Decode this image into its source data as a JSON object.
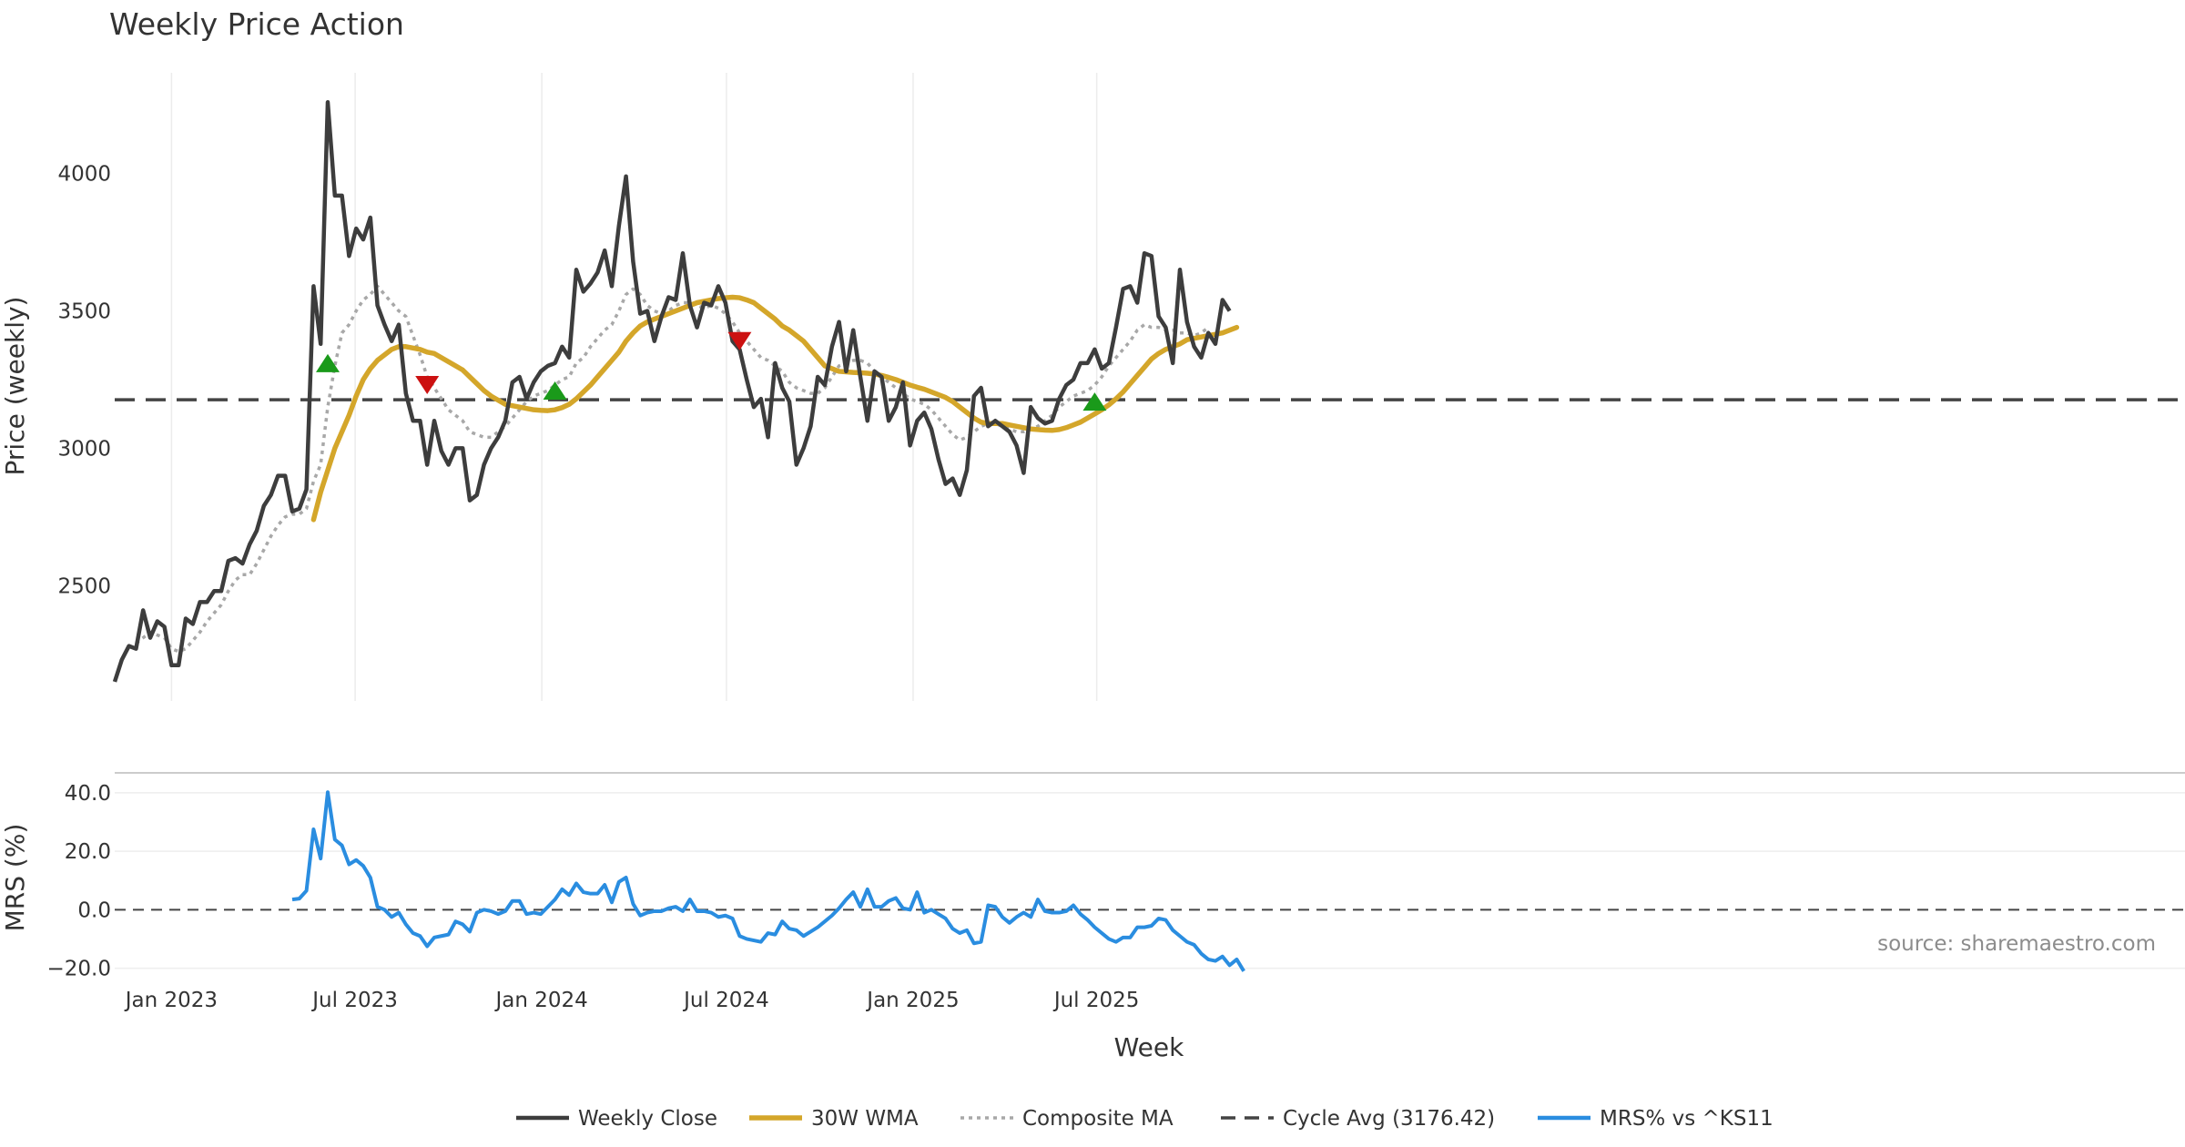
{
  "chart_data": {
    "type": "line",
    "title": "Weekly Price Action",
    "xlabel": "Week",
    "x_ticks": [
      "Jan 2023",
      "Jul 2023",
      "Jan 2024",
      "Jul 2024",
      "Jan 2025",
      "Jul 2025"
    ],
    "x_range": [
      "2022-11-06",
      "2025-11-15"
    ],
    "source_note": "source: sharemaestro.com",
    "colors": {
      "weekly_close": "#3d3d3d",
      "wma": "#d4a62a",
      "composite": "#a8a8a8",
      "cycle": "#444444",
      "mrs": "#2a8de0",
      "buy_marker": "#1a9a1a",
      "sell_marker": "#cc1111"
    },
    "price_panel": {
      "ylabel": "Price (weekly)",
      "ylim": [
        2080,
        4400
      ],
      "yticks": [
        2500,
        3000,
        3500,
        4000
      ],
      "grid": "vertical",
      "series": [
        {
          "name": "Weekly Close",
          "style": "solid",
          "values": [
            2150,
            2230,
            2280,
            2270,
            2410,
            2310,
            2370,
            2350,
            2210,
            2210,
            2380,
            2360,
            2440,
            2440,
            2480,
            2480,
            2590,
            2600,
            2580,
            2650,
            2700,
            2790,
            2830,
            2900,
            2900,
            2770,
            2780,
            2850,
            3590,
            3380,
            4260,
            3920,
            3920,
            3700,
            3800,
            3760,
            3840,
            3520,
            3450,
            3390,
            3450,
            3200,
            3100,
            3100,
            2940,
            3100,
            2990,
            2940,
            3000,
            3000,
            2810,
            2830,
            2940,
            3000,
            3040,
            3100,
            3240,
            3260,
            3180,
            3240,
            3280,
            3300,
            3310,
            3370,
            3330,
            3650,
            3570,
            3600,
            3640,
            3720,
            3590,
            3810,
            3990,
            3680,
            3490,
            3500,
            3390,
            3480,
            3550,
            3540,
            3710,
            3520,
            3440,
            3530,
            3520,
            3590,
            3530,
            3390,
            3360,
            3250,
            3150,
            3180,
            3040,
            3310,
            3220,
            3170,
            2940,
            3000,
            3080,
            3260,
            3230,
            3370,
            3460,
            3280,
            3430,
            3260,
            3100,
            3280,
            3260,
            3100,
            3150,
            3240,
            3010,
            3100,
            3130,
            3070,
            2960,
            2870,
            2890,
            2830,
            2920,
            3190,
            3220,
            3080,
            3100,
            3080,
            3060,
            3010,
            2910,
            3150,
            3110,
            3090,
            3100,
            3180,
            3230,
            3250,
            3310,
            3310,
            3360,
            3290,
            3310,
            3440,
            3580,
            3590,
            3530,
            3710,
            3700,
            3480,
            3440,
            3310,
            3650,
            3460,
            3370,
            3330,
            3420,
            3380,
            3540,
            3500
          ]
        },
        {
          "name": "30W WMA",
          "style": "solid",
          "start_index": 28,
          "values": [
            2740,
            2840,
            2920,
            3000,
            3060,
            3120,
            3190,
            3250,
            3290,
            3320,
            3340,
            3360,
            3370,
            3370,
            3365,
            3360,
            3350,
            3345,
            3330,
            3315,
            3300,
            3285,
            3260,
            3235,
            3210,
            3190,
            3175,
            3160,
            3155,
            3150,
            3145,
            3140,
            3138,
            3137,
            3140,
            3148,
            3160,
            3180,
            3205,
            3230,
            3260,
            3290,
            3320,
            3350,
            3390,
            3420,
            3445,
            3460,
            3470,
            3480,
            3490,
            3500,
            3510,
            3520,
            3530,
            3535,
            3540,
            3545,
            3548,
            3550,
            3548,
            3540,
            3530,
            3510,
            3490,
            3470,
            3445,
            3430,
            3410,
            3390,
            3360,
            3330,
            3300,
            3290,
            3280,
            3278,
            3276,
            3275,
            3273,
            3270,
            3265,
            3258,
            3250,
            3240,
            3230,
            3222,
            3215,
            3205,
            3195,
            3185,
            3170,
            3150,
            3130,
            3110,
            3095,
            3090,
            3090,
            3090,
            3085,
            3080,
            3075,
            3070,
            3068,
            3066,
            3065,
            3068,
            3075,
            3085,
            3095,
            3110,
            3125,
            3140,
            3158,
            3180,
            3205,
            3235,
            3265,
            3295,
            3325,
            3345,
            3360,
            3370,
            3380,
            3395,
            3400,
            3405,
            3410,
            3415,
            3420,
            3430,
            3440
          ]
        },
        {
          "name": "Composite MA",
          "style": "dotted",
          "start_index": 3,
          "values": [
            2290,
            2310,
            2330,
            2320,
            2310,
            2270,
            2260,
            2270,
            2300,
            2330,
            2370,
            2400,
            2430,
            2480,
            2520,
            2540,
            2540,
            2580,
            2630,
            2680,
            2720,
            2750,
            2760,
            2760,
            2780,
            2880,
            2940,
            3150,
            3300,
            3420,
            3450,
            3500,
            3540,
            3560,
            3590,
            3560,
            3530,
            3500,
            3480,
            3410,
            3340,
            3260,
            3220,
            3180,
            3140,
            3120,
            3100,
            3060,
            3050,
            3040,
            3040,
            3060,
            3080,
            3110,
            3140,
            3170,
            3190,
            3200,
            3210,
            3230,
            3250,
            3260,
            3310,
            3330,
            3370,
            3400,
            3430,
            3450,
            3500,
            3560,
            3580,
            3560,
            3520,
            3500,
            3490,
            3500,
            3520,
            3530,
            3530,
            3520,
            3510,
            3520,
            3510,
            3490,
            3460,
            3420,
            3390,
            3360,
            3330,
            3320,
            3300,
            3280,
            3240,
            3220,
            3210,
            3200,
            3200,
            3220,
            3260,
            3300,
            3310,
            3320,
            3320,
            3310,
            3280,
            3260,
            3240,
            3220,
            3200,
            3180,
            3170,
            3160,
            3140,
            3110,
            3080,
            3050,
            3030,
            3040,
            3060,
            3080,
            3090,
            3090,
            3080,
            3070,
            3060,
            3060,
            3070,
            3080,
            3100,
            3120,
            3150,
            3170,
            3190,
            3200,
            3210,
            3230,
            3260,
            3300,
            3330,
            3360,
            3390,
            3430,
            3450,
            3440,
            3440,
            3430,
            3430,
            3420,
            3420,
            3410,
            3420,
            3440
          ]
        },
        {
          "name": "Cycle Avg (3176.42)",
          "style": "dashed",
          "value": 3176.42
        }
      ],
      "markers": [
        {
          "type": "buy",
          "index": 30,
          "value": 3310
        },
        {
          "type": "sell",
          "index": 44,
          "value": 3230
        },
        {
          "type": "buy",
          "index": 62,
          "value": 3210
        },
        {
          "type": "sell",
          "index": 88,
          "value": 3390
        },
        {
          "type": "buy",
          "index": 138,
          "value": 3170
        }
      ]
    },
    "mrs_panel": {
      "ylabel": "MRS (%)",
      "ylim": [
        -22,
        44
      ],
      "yticks": [
        "40.0",
        "20.0",
        "0.0",
        "−20.0"
      ],
      "ytick_values": [
        40,
        20,
        0,
        -20
      ],
      "zero_line": "dashed",
      "series": [
        {
          "name": "MRS% vs ^KS11",
          "start_index": 25,
          "values": [
            3.5,
            3.8,
            6.5,
            27.5,
            17.5,
            40.2,
            24.0,
            22.0,
            15.5,
            17.0,
            15.0,
            11.0,
            1.0,
            0.0,
            -2.5,
            -1.0,
            -5.0,
            -8.0,
            -9.0,
            -12.5,
            -9.5,
            -9.0,
            -8.5,
            -4.0,
            -5.0,
            -7.5,
            -1.0,
            0.0,
            -0.5,
            -1.5,
            -0.5,
            3.0,
            3.0,
            -1.5,
            -1.0,
            -1.5,
            1.0,
            3.5,
            7.0,
            5.0,
            9.0,
            6.0,
            5.5,
            5.5,
            8.5,
            2.5,
            9.5,
            11.0,
            2.0,
            -2.0,
            -1.0,
            -0.5,
            -0.5,
            0.5,
            1.0,
            -0.5,
            3.5,
            -0.5,
            -0.5,
            -1.0,
            -2.5,
            -2.0,
            -3.0,
            -9.0,
            -10.0,
            -10.5,
            -11.0,
            -8.0,
            -8.5,
            -4.0,
            -6.5,
            -7.0,
            -9.0,
            -7.5,
            -6.0,
            -4.0,
            -2.0,
            0.5,
            3.5,
            6.0,
            1.0,
            7.0,
            1.0,
            1.0,
            3.0,
            4.0,
            0.5,
            0.0,
            6.0,
            -1.0,
            0.0,
            -1.5,
            -3.0,
            -6.5,
            -8.0,
            -7.0,
            -11.5,
            -11.0,
            1.5,
            1.0,
            -2.5,
            -4.5,
            -2.5,
            -1.0,
            -2.5,
            3.5,
            -0.5,
            -1.0,
            -1.0,
            -0.5,
            1.5,
            -1.5,
            -3.5,
            -6.0,
            -8.0,
            -10.0,
            -11.0,
            -9.5,
            -9.5,
            -6.0,
            -6.0,
            -5.5,
            -3.0,
            -3.5,
            -7.0,
            -9.0,
            -11.0,
            -12.0,
            -15.0,
            -17.0,
            -17.5,
            -16.0,
            -19.0,
            -17.0,
            -21.0
          ]
        }
      ]
    }
  }
}
